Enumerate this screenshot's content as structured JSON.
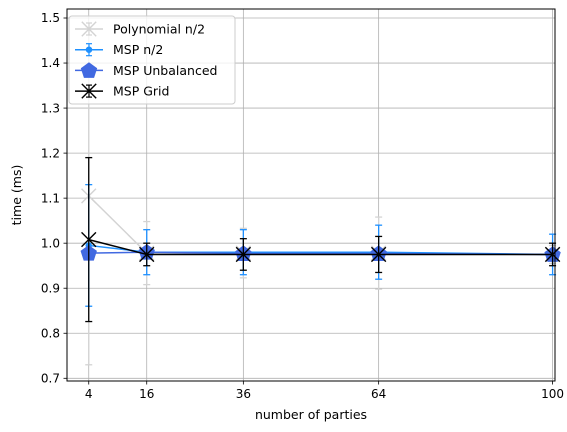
{
  "chart_data": {
    "type": "line",
    "title": "",
    "xlabel": "number of parties",
    "ylabel": "time (ms)",
    "xlim": [
      -0.5,
      100.5
    ],
    "ylim": [
      0.694,
      1.52
    ],
    "x_ticks": [
      4,
      16,
      36,
      64,
      100
    ],
    "x_tick_labels": [
      "4",
      "16",
      "36",
      "64",
      "100"
    ],
    "y_ticks": [
      0.7,
      0.8,
      0.9,
      1.0,
      1.1,
      1.2,
      1.3,
      1.4,
      1.5
    ],
    "y_tick_labels": [
      "0.7",
      "0.8",
      "0.9",
      "1.0",
      "1.1",
      "1.2",
      "1.3",
      "1.4",
      "1.5"
    ],
    "grid": true,
    "legend_position": "upper-left",
    "x": [
      4,
      16,
      36,
      64,
      100
    ],
    "series": [
      {
        "name": "Polynomial n/2",
        "color": "#d3d3d3",
        "marker": "x",
        "values": [
          1.105,
          0.978,
          0.978,
          0.978,
          0.975
        ],
        "error": [
          0.375,
          0.07,
          0.055,
          0.08,
          0.02
        ]
      },
      {
        "name": "MSP n/2",
        "color": "#1e90ff",
        "marker": "circle",
        "values": [
          0.995,
          0.98,
          0.98,
          0.98,
          0.975
        ],
        "error": [
          0.135,
          0.05,
          0.05,
          0.06,
          0.045
        ]
      },
      {
        "name": "MSP Unbalanced",
        "color": "#4169e1",
        "marker": "pentagon",
        "values": [
          0.978,
          0.98,
          0.977,
          0.977,
          0.975
        ],
        "error": [
          0,
          0,
          0,
          0,
          0
        ]
      },
      {
        "name": "MSP Grid",
        "color": "#000000",
        "marker": "x",
        "values": [
          1.008,
          0.975,
          0.975,
          0.975,
          0.975
        ],
        "error": [
          0.182,
          0.025,
          0.035,
          0.04,
          0.025
        ]
      }
    ]
  }
}
